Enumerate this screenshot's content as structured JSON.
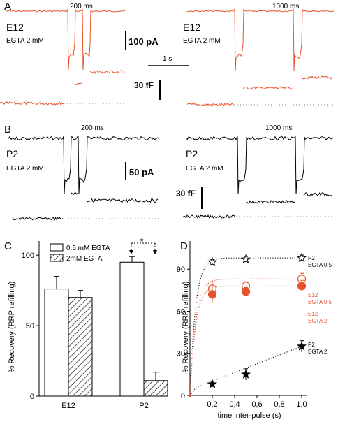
{
  "panel_a": {
    "letter": "A",
    "left": {
      "interval": "200 ms",
      "group": "E12",
      "condition": "EGTA 2 mM"
    },
    "right": {
      "interval": "1000 ms",
      "group": "E12",
      "condition": "EGTA 2 mM"
    },
    "current_scale": "100 pA",
    "time_scale": "1 s",
    "capacitance_scale": "30 fF",
    "trace_color": "#e8532e"
  },
  "panel_b": {
    "letter": "B",
    "left": {
      "interval": "200 ms",
      "group": "P2",
      "condition": "EGTA 2 mM"
    },
    "right": {
      "interval": "1000 ms",
      "group": "P2",
      "condition": "EGTA 2 mM"
    },
    "current_scale": "50 pA",
    "capacitance_scale": "30 fF",
    "trace_color": "#000000"
  },
  "chart_data": [
    {
      "panel": "C",
      "type": "bar",
      "ylabel": "% Recovery (RRP refilling)",
      "categories": [
        "E12",
        "P2"
      ],
      "ylim": [
        0,
        110
      ],
      "yticks": [
        "0",
        "50",
        "100"
      ],
      "series": [
        {
          "name": "0.5 mM EGTA",
          "fill": "open",
          "values": [
            76,
            95
          ],
          "errors": [
            9,
            4
          ]
        },
        {
          "name": "2mM EGTA",
          "fill": "hatched",
          "values": [
            70,
            11
          ],
          "errors": [
            5,
            6
          ]
        }
      ],
      "significance": "*",
      "legend": "top"
    },
    {
      "panel": "D",
      "type": "scatter",
      "xlabel": "time inter-pulse (s)",
      "ylabel": "% Recovery (RRP refilling)",
      "xlim": [
        0,
        1.05
      ],
      "ylim": [
        0,
        110
      ],
      "xticks": [
        "0,2",
        "0,4",
        "0,6",
        "0,8",
        "1,0"
      ],
      "yticks": [
        "0",
        "30",
        "60",
        "90"
      ],
      "series": [
        {
          "label_line1": "P2",
          "label_line2": "EGTA 0.5",
          "color": "#000000",
          "marker": "open-star",
          "x": [
            0.2,
            0.5,
            1.0
          ],
          "y": [
            95,
            97,
            98
          ],
          "err": [
            2,
            2,
            2
          ]
        },
        {
          "label_line1": "E12",
          "label_line2": "EGTA 0.5",
          "color": "#e8532e",
          "marker": "open-circle",
          "x": [
            0.2,
            0.5,
            1.0
          ],
          "y": [
            76,
            78,
            83
          ],
          "err": [
            5,
            3,
            4
          ]
        },
        {
          "label_line1": "E12",
          "label_line2": "EGTA 2",
          "color": "#e8532e",
          "marker": "filled-circle",
          "x": [
            0.2,
            0.5,
            1.0
          ],
          "y": [
            72,
            74,
            78
          ],
          "err": [
            6,
            3,
            4
          ]
        },
        {
          "label_line1": "P2",
          "label_line2": "EGTA 2",
          "color": "#000000",
          "marker": "filled-star",
          "x": [
            0.2,
            0.5,
            1.0
          ],
          "y": [
            8,
            15,
            35
          ],
          "err": [
            2,
            4,
            4
          ]
        }
      ]
    }
  ]
}
